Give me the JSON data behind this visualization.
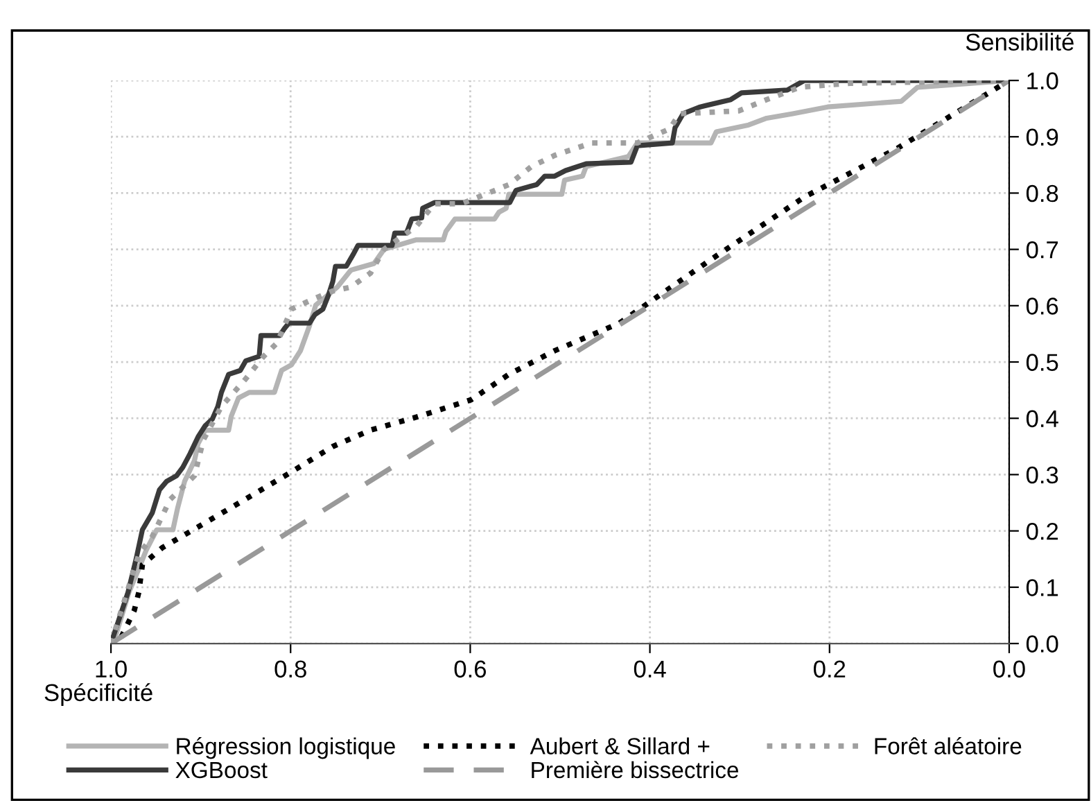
{
  "chart_data": {
    "type": "line",
    "xlabel": "Spécificité",
    "ylabel": "Sensibilité",
    "xlim": [
      1.0,
      0.0
    ],
    "ylim": [
      0.0,
      1.0
    ],
    "xticks": [
      {
        "value": 1.0,
        "label": "1.0"
      },
      {
        "value": 0.8,
        "label": "0.8"
      },
      {
        "value": 0.6,
        "label": "0.6"
      },
      {
        "value": 0.4,
        "label": "0.4"
      },
      {
        "value": 0.2,
        "label": "0.2"
      },
      {
        "value": 0.0,
        "label": "0.0"
      }
    ],
    "yticks": [
      {
        "value": 0.0,
        "label": "0.0"
      },
      {
        "value": 0.1,
        "label": "0.1"
      },
      {
        "value": 0.2,
        "label": "0.2"
      },
      {
        "value": 0.3,
        "label": "0.3"
      },
      {
        "value": 0.4,
        "label": "0.4"
      },
      {
        "value": 0.5,
        "label": "0.5"
      },
      {
        "value": 0.6,
        "label": "0.6"
      },
      {
        "value": 0.7,
        "label": "0.7"
      },
      {
        "value": 0.8,
        "label": "0.8"
      },
      {
        "value": 0.9,
        "label": "0.9"
      },
      {
        "value": 1.0,
        "label": "1.0"
      }
    ],
    "grid": true,
    "legend": "bottom",
    "series": [
      {
        "name": "Régression logistique",
        "color": "#b4b4b4",
        "line_style": "solid",
        "x": [
          1.0,
          0.997,
          0.98,
          0.969,
          0.961,
          0.949,
          0.931,
          0.926,
          0.918,
          0.907,
          0.903,
          0.895,
          0.869,
          0.866,
          0.858,
          0.846,
          0.818,
          0.81,
          0.799,
          0.789,
          0.779,
          0.772,
          0.748,
          0.733,
          0.707,
          0.696,
          0.66,
          0.63,
          0.627,
          0.617,
          0.573,
          0.568,
          0.56,
          0.557,
          0.498,
          0.495,
          0.475,
          0.471,
          0.424,
          0.414,
          0.332,
          0.326,
          0.29,
          0.27,
          0.241,
          0.202,
          0.12,
          0.102,
          0.0
        ],
        "values": [
          0.0,
          0.002,
          0.091,
          0.133,
          0.165,
          0.202,
          0.202,
          0.239,
          0.288,
          0.325,
          0.355,
          0.379,
          0.379,
          0.404,
          0.436,
          0.446,
          0.446,
          0.485,
          0.495,
          0.52,
          0.564,
          0.601,
          0.633,
          0.663,
          0.675,
          0.7,
          0.717,
          0.717,
          0.732,
          0.754,
          0.754,
          0.766,
          0.773,
          0.798,
          0.798,
          0.823,
          0.83,
          0.847,
          0.865,
          0.889,
          0.889,
          0.909,
          0.921,
          0.933,
          0.941,
          0.953,
          0.963,
          0.988,
          1.0
        ]
      },
      {
        "name": "XGBoost",
        "color": "#3a3a3a",
        "line_style": "solid",
        "x": [
          1.0,
          0.981,
          0.972,
          0.965,
          0.954,
          0.946,
          0.938,
          0.927,
          0.92,
          0.912,
          0.903,
          0.895,
          0.887,
          0.881,
          0.877,
          0.869,
          0.856,
          0.85,
          0.835,
          0.833,
          0.812,
          0.807,
          0.802,
          0.779,
          0.773,
          0.764,
          0.758,
          0.753,
          0.75,
          0.738,
          0.73,
          0.725,
          0.687,
          0.684,
          0.671,
          0.665,
          0.654,
          0.653,
          0.64,
          0.556,
          0.549,
          0.526,
          0.517,
          0.506,
          0.494,
          0.471,
          0.421,
          0.414,
          0.375,
          0.372,
          0.363,
          0.344,
          0.31,
          0.298,
          0.247,
          0.228,
          0.0
        ],
        "values": [
          0.0,
          0.091,
          0.15,
          0.202,
          0.232,
          0.273,
          0.288,
          0.298,
          0.313,
          0.337,
          0.367,
          0.387,
          0.399,
          0.421,
          0.446,
          0.478,
          0.485,
          0.502,
          0.51,
          0.547,
          0.547,
          0.559,
          0.569,
          0.569,
          0.584,
          0.594,
          0.618,
          0.643,
          0.67,
          0.67,
          0.692,
          0.707,
          0.707,
          0.729,
          0.729,
          0.754,
          0.756,
          0.773,
          0.783,
          0.783,
          0.805,
          0.815,
          0.83,
          0.83,
          0.84,
          0.852,
          0.855,
          0.884,
          0.889,
          0.916,
          0.941,
          0.953,
          0.966,
          0.978,
          0.983,
          1.0,
          1.0
        ]
      },
      {
        "name": "Aubert & Sillard +",
        "color": "#000000",
        "line_style": "dotted",
        "x": [
          1.0,
          0.992,
          0.974,
          0.969,
          0.965,
          0.943,
          0.903,
          0.856,
          0.804,
          0.753,
          0.711,
          0.656,
          0.599,
          0.557,
          0.506,
          0.434,
          0.332,
          0.228,
          0.125,
          0.0
        ],
        "values": [
          0.0,
          0.0,
          0.059,
          0.091,
          0.14,
          0.17,
          0.207,
          0.251,
          0.3,
          0.35,
          0.379,
          0.404,
          0.433,
          0.478,
          0.52,
          0.569,
          0.682,
          0.793,
          0.879,
          1.0
        ]
      },
      {
        "name": "Première bissectrice",
        "color": "#999999",
        "line_style": "dashed",
        "x": [
          1.0,
          0.0
        ],
        "values": [
          0.0,
          1.0
        ]
      },
      {
        "name": "Forêt aléatoire",
        "color": "#a0a0a0",
        "line_style": "dotted",
        "x": [
          1.0,
          0.969,
          0.954,
          0.934,
          0.907,
          0.897,
          0.877,
          0.85,
          0.83,
          0.815,
          0.799,
          0.773,
          0.753,
          0.733,
          0.711,
          0.696,
          0.66,
          0.64,
          0.61,
          0.583,
          0.557,
          0.532,
          0.506,
          0.465,
          0.414,
          0.378,
          0.367,
          0.301,
          0.27,
          0.233,
          0.177,
          0.0
        ],
        "values": [
          0.0,
          0.158,
          0.19,
          0.256,
          0.298,
          0.362,
          0.421,
          0.47,
          0.51,
          0.534,
          0.594,
          0.613,
          0.626,
          0.633,
          0.658,
          0.7,
          0.741,
          0.781,
          0.781,
          0.798,
          0.815,
          0.847,
          0.867,
          0.889,
          0.889,
          0.914,
          0.941,
          0.946,
          0.966,
          0.988,
          0.995,
          1.0
        ]
      }
    ]
  }
}
